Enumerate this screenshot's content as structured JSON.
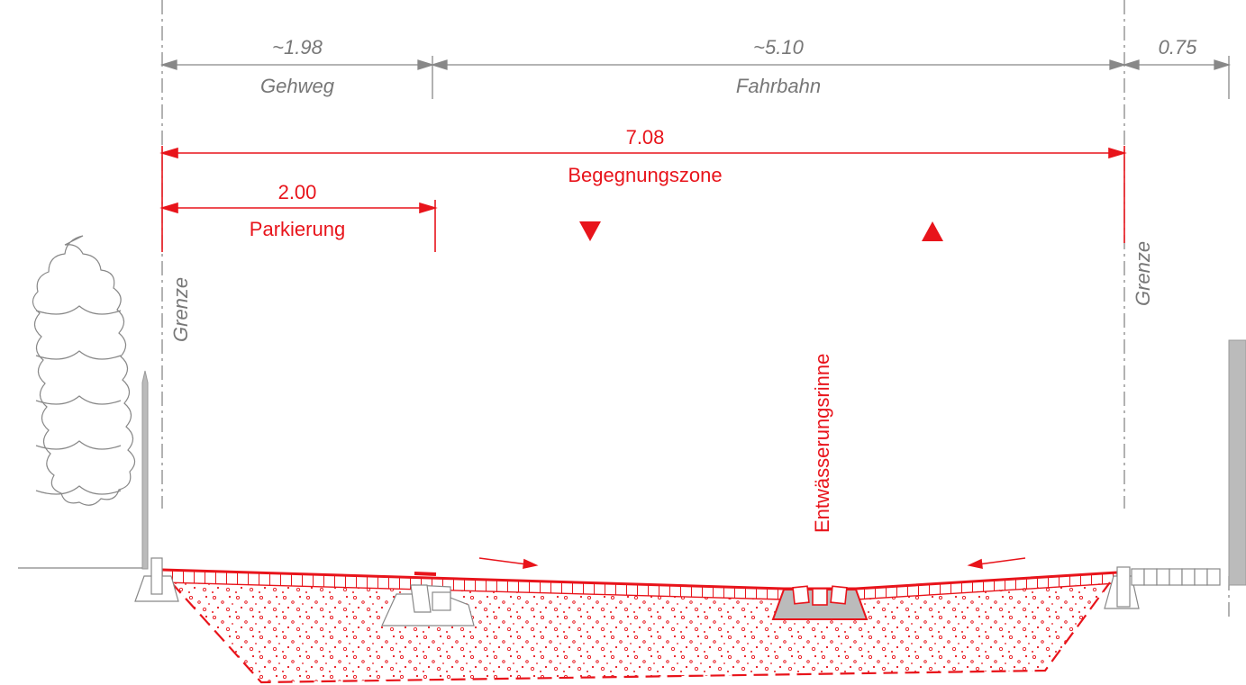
{
  "dimensions_existing": [
    {
      "value": "~1.98",
      "label": "Gehweg"
    },
    {
      "value": "~5.10",
      "label": "Fahrbahn"
    },
    {
      "value": "0.75",
      "label": ""
    }
  ],
  "dimensions_proposed": [
    {
      "value": "7.08",
      "label": "Begegnungszone"
    },
    {
      "value": "2.00",
      "label": "Parkierung"
    }
  ],
  "boundary_labels": {
    "left": "Grenze",
    "right": "Grenze"
  },
  "drainage_label": "Entwässerungsrinne",
  "colors": {
    "proposed": "#e8141b",
    "existing": "#777777",
    "fill_gray": "#bbbbbb"
  },
  "icons": [
    "tree-outline-icon",
    "fence-post-icon",
    "direction-triangle-icon",
    "flow-arrow-icon"
  ]
}
